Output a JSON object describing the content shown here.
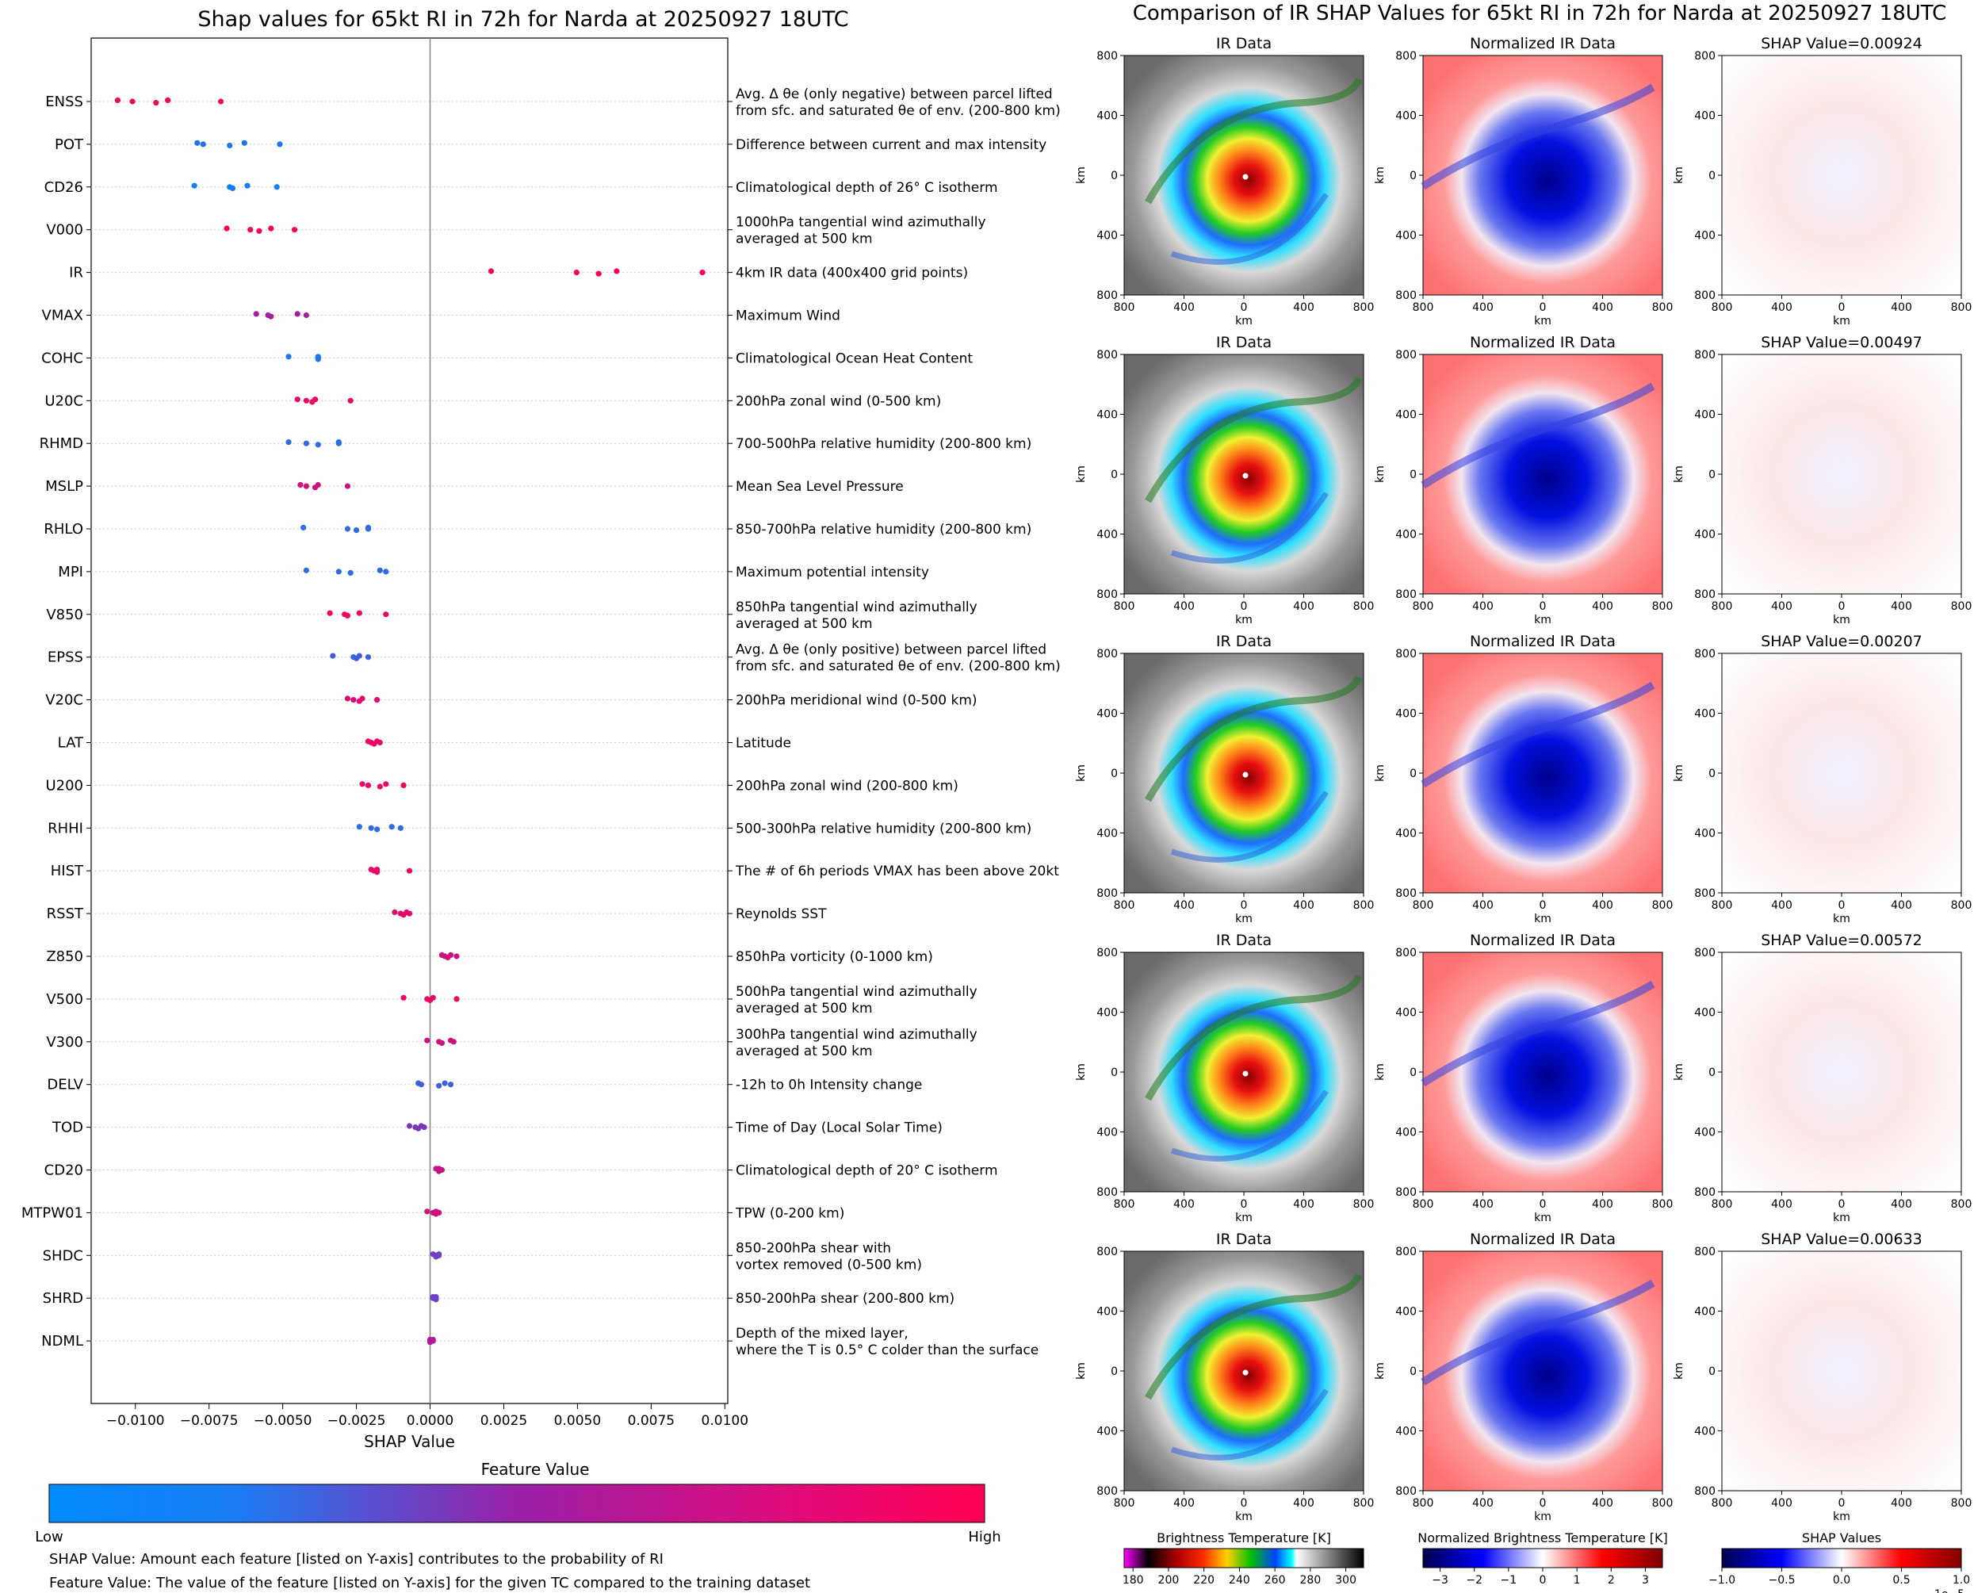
{
  "left_title": "Shap values for 65kt RI in 72h for Narda at 20250927 18UTC",
  "right_title": "Comparison of IR SHAP Values for 65kt RI in 72h for Narda at 20250927 18UTC",
  "colors": {
    "low": "#008bfb",
    "mid": "#9b21a8",
    "high": "#ff0052"
  },
  "colorbar": {
    "title": "Feature Value",
    "low_label": "Low",
    "high_label": "High"
  },
  "footnotes": [
    "SHAP Value: Amount each feature [listed on Y-axis] contributes to the probability of RI",
    "Feature Value: The value of the feature [listed on Y-axis] for the given TC compared to the training dataset"
  ],
  "chart_data": [
    {
      "type": "scatter",
      "title": "Shap values for 65kt RI in 72h for Narda at 20250927 18UTC",
      "xlabel": "SHAP Value",
      "ylabel": "",
      "xlim": [
        -0.0115,
        0.0101
      ],
      "xticks": [
        -0.01,
        -0.0075,
        -0.005,
        -0.0025,
        0.0,
        0.0025,
        0.005,
        0.0075,
        0.01
      ],
      "xtick_labels": [
        "−0.0100",
        "−0.0075",
        "−0.0050",
        "−0.0025",
        "0.0000",
        "0.0025",
        "0.0050",
        "0.0075",
        "0.0100"
      ],
      "reference_line_x": 0,
      "features": [
        {
          "name": "ENSS",
          "desc": "Avg. Δ θe (only negative) between parcel lifted|from sfc. and saturated θe of env. (200-800 km)",
          "shap": [
            -0.0106,
            -0.0101,
            -0.0093,
            -0.0089,
            -0.0071
          ],
          "fv": [
            0.95,
            0.95,
            0.95,
            0.95,
            0.95
          ]
        },
        {
          "name": "POT",
          "desc": "Difference between current and max intensity",
          "shap": [
            -0.0079,
            -0.0077,
            -0.0068,
            -0.0063,
            -0.0051
          ],
          "fv": [
            0.1,
            0.1,
            0.1,
            0.1,
            0.1
          ]
        },
        {
          "name": "CD26",
          "desc": "Climatological depth of 26° C isotherm",
          "shap": [
            -0.008,
            -0.0068,
            -0.0067,
            -0.0062,
            -0.0052
          ],
          "fv": [
            0.05,
            0.05,
            0.05,
            0.05,
            0.05
          ]
        },
        {
          "name": "V000",
          "desc": "1000hPa tangential wind azimuthally|averaged at 500 km",
          "shap": [
            -0.0069,
            -0.0061,
            -0.0058,
            -0.0054,
            -0.0046
          ],
          "fv": [
            0.95,
            0.95,
            0.95,
            0.95,
            0.95
          ]
        },
        {
          "name": "IR",
          "desc": "4km IR data (400x400 grid points)",
          "shap": [
            0.00207,
            0.00497,
            0.00572,
            0.00633,
            0.00924
          ],
          "fv": [
            0.95,
            0.95,
            0.95,
            0.95,
            0.95
          ]
        },
        {
          "name": "VMAX",
          "desc": "Maximum Wind",
          "shap": [
            -0.0059,
            -0.0055,
            -0.0054,
            -0.0045,
            -0.0042
          ],
          "fv": [
            0.55,
            0.55,
            0.55,
            0.55,
            0.55
          ]
        },
        {
          "name": "COHC",
          "desc": "Climatological Ocean Heat Content",
          "shap": [
            -0.0048,
            -0.0038,
            -0.0038,
            -0.0038,
            -0.0038
          ],
          "fv": [
            0.1,
            0.1,
            0.1,
            0.1,
            0.1
          ]
        },
        {
          "name": "U20C",
          "desc": "200hPa zonal wind (0-500 km)",
          "shap": [
            -0.0045,
            -0.0042,
            -0.004,
            -0.0039,
            -0.0027
          ],
          "fv": [
            0.9,
            0.9,
            0.9,
            0.9,
            0.9
          ]
        },
        {
          "name": "RHMD",
          "desc": "700-500hPa relative humidity (200-800 km)",
          "shap": [
            -0.0048,
            -0.0042,
            -0.0038,
            -0.0031,
            -0.0031
          ],
          "fv": [
            0.15,
            0.15,
            0.15,
            0.15,
            0.15
          ]
        },
        {
          "name": "MSLP",
          "desc": "Mean Sea Level Pressure",
          "shap": [
            -0.0044,
            -0.0042,
            -0.0039,
            -0.0038,
            -0.0028
          ],
          "fv": [
            0.75,
            0.75,
            0.75,
            0.75,
            0.75
          ]
        },
        {
          "name": "RHLO",
          "desc": "850-700hPa relative humidity (200-800 km)",
          "shap": [
            -0.0043,
            -0.0028,
            -0.0025,
            -0.0021,
            -0.0021
          ],
          "fv": [
            0.15,
            0.15,
            0.15,
            0.15,
            0.15
          ]
        },
        {
          "name": "MPI",
          "desc": "Maximum potential intensity",
          "shap": [
            -0.0042,
            -0.0031,
            -0.0027,
            -0.0017,
            -0.0015
          ],
          "fv": [
            0.15,
            0.15,
            0.15,
            0.15,
            0.15
          ]
        },
        {
          "name": "V850",
          "desc": "850hPa tangential wind azimuthally|averaged at 500 km",
          "shap": [
            -0.0034,
            -0.0029,
            -0.0028,
            -0.0024,
            -0.0015
          ],
          "fv": [
            0.9,
            0.9,
            0.9,
            0.9,
            0.9
          ]
        },
        {
          "name": "EPSS",
          "desc": "Avg. Δ θe (only positive) between parcel lifted|from sfc. and saturated θe of env. (200-800 km)",
          "shap": [
            -0.0033,
            -0.0026,
            -0.0025,
            -0.0024,
            -0.0021
          ],
          "fv": [
            0.2,
            0.2,
            0.2,
            0.2,
            0.2
          ]
        },
        {
          "name": "V20C",
          "desc": "200hPa meridional wind (0-500 km)",
          "shap": [
            -0.0028,
            -0.0026,
            -0.0024,
            -0.0023,
            -0.0018
          ],
          "fv": [
            0.85,
            0.85,
            0.85,
            0.85,
            0.85
          ]
        },
        {
          "name": "LAT",
          "desc": "Latitude",
          "shap": [
            -0.0021,
            -0.002,
            -0.0019,
            -0.0018,
            -0.0017
          ],
          "fv": [
            0.9,
            0.9,
            0.9,
            0.9,
            0.9
          ]
        },
        {
          "name": "U200",
          "desc": "200hPa zonal wind (200-800 km)",
          "shap": [
            -0.0023,
            -0.0021,
            -0.0017,
            -0.0015,
            -0.0009
          ],
          "fv": [
            0.9,
            0.9,
            0.9,
            0.9,
            0.9
          ]
        },
        {
          "name": "RHHI",
          "desc": "500-300hPa relative humidity (200-800 km)",
          "shap": [
            -0.0024,
            -0.002,
            -0.0018,
            -0.0013,
            -0.001
          ],
          "fv": [
            0.15,
            0.15,
            0.15,
            0.15,
            0.15
          ]
        },
        {
          "name": "HIST",
          "desc": "The # of 6h periods VMAX has been above 20kt",
          "shap": [
            -0.002,
            -0.0019,
            -0.0018,
            -0.0018,
            -0.0007
          ],
          "fv": [
            0.9,
            0.9,
            0.9,
            0.9,
            0.9
          ]
        },
        {
          "name": "RSST",
          "desc": "Reynolds SST",
          "shap": [
            -0.0012,
            -0.001,
            -0.0009,
            -0.0008,
            -0.0007
          ],
          "fv": [
            0.85,
            0.85,
            0.85,
            0.85,
            0.85
          ]
        },
        {
          "name": "Z850",
          "desc": "850hPa vorticity (0-1000 km)",
          "shap": [
            0.0004,
            0.0005,
            0.0006,
            0.0007,
            0.0009
          ],
          "fv": [
            0.75,
            0.75,
            0.75,
            0.75,
            0.75
          ]
        },
        {
          "name": "V500",
          "desc": "500hPa tangential wind azimuthally|averaged at 500 km",
          "shap": [
            -0.0009,
            -0.0001,
            0.0,
            0.0001,
            0.0009
          ],
          "fv": [
            0.9,
            0.9,
            0.9,
            0.9,
            0.9
          ]
        },
        {
          "name": "V300",
          "desc": "300hPa tangential wind azimuthally|averaged at 500 km",
          "shap": [
            -0.0001,
            0.0003,
            0.0004,
            0.0007,
            0.0008
          ],
          "fv": [
            0.75,
            0.75,
            0.75,
            0.75,
            0.75
          ]
        },
        {
          "name": "DELV",
          "desc": "-12h to 0h Intensity change",
          "shap": [
            -0.0004,
            -0.0003,
            0.0003,
            0.0005,
            0.0007
          ],
          "fv": [
            0.2,
            0.2,
            0.2,
            0.2,
            0.2
          ]
        },
        {
          "name": "TOD",
          "desc": "Time of Day (Local Solar Time)",
          "shap": [
            -0.0007,
            -0.0005,
            -0.0004,
            -0.0003,
            -0.0002
          ],
          "fv": [
            0.4,
            0.4,
            0.4,
            0.4,
            0.4
          ]
        },
        {
          "name": "CD20",
          "desc": "Climatological depth of 20° C isotherm",
          "shap": [
            0.0002,
            0.0003,
            0.0003,
            0.0003,
            0.0004
          ],
          "fv": [
            0.7,
            0.7,
            0.7,
            0.7,
            0.7
          ]
        },
        {
          "name": "MTPW01",
          "desc": "TPW (0-200 km)",
          "shap": [
            -0.0001,
            0.0001,
            0.0002,
            0.0002,
            0.0003
          ],
          "fv": [
            0.75,
            0.75,
            0.75,
            0.75,
            0.75
          ]
        },
        {
          "name": "SHDC",
          "desc": "850-200hPa shear with|vortex removed (0-500 km)",
          "shap": [
            0.0001,
            0.0002,
            0.0002,
            0.0003,
            0.0003
          ],
          "fv": [
            0.35,
            0.35,
            0.35,
            0.35,
            0.35
          ]
        },
        {
          "name": "SHRD",
          "desc": "850-200hPa shear (200-800 km)",
          "shap": [
            0.0001,
            0.0001,
            0.0002,
            0.0002,
            0.0002
          ],
          "fv": [
            0.35,
            0.35,
            0.35,
            0.35,
            0.35
          ]
        },
        {
          "name": "NDML",
          "desc": "Depth of the mixed layer,|where the T is 0.5° C colder than the surface",
          "shap": [
            0.0,
            0.0,
            0.0,
            0.0001,
            0.0001
          ],
          "fv": [
            0.6,
            0.6,
            0.6,
            0.6,
            0.6
          ]
        }
      ]
    },
    {
      "type": "heatmap",
      "panel_titles": [
        "IR Data",
        "Normalized IR Data"
      ],
      "shap_titles": [
        "SHAP Value=0.00924",
        "SHAP Value=0.00497",
        "SHAP Value=0.00207",
        "SHAP Value=0.00572",
        "SHAP Value=0.00633"
      ],
      "xlabel": "km",
      "ylabel": "km",
      "xticks": [
        "800",
        "400",
        "0",
        "400",
        "800"
      ],
      "yticks": [
        "800",
        "400",
        "0",
        "400",
        "800"
      ],
      "colorbars": [
        {
          "title": "Brightness Temperature [K]",
          "ticks": [
            "180",
            "200",
            "220",
            "240",
            "260",
            "280",
            "300"
          ],
          "range": [
            175,
            310
          ]
        },
        {
          "title": "Normalized Brightness Temperature [K]",
          "ticks": [
            "−3",
            "−2",
            "−1",
            "0",
            "1",
            "2",
            "3"
          ],
          "range": [
            -3.5,
            3.5
          ]
        },
        {
          "title": "SHAP Values",
          "ticks": [
            "−1.0",
            "−0.5",
            "0.0",
            "0.5",
            "1.0"
          ],
          "range": [
            -1,
            1
          ],
          "offset_label": "1e−5"
        }
      ]
    }
  ]
}
